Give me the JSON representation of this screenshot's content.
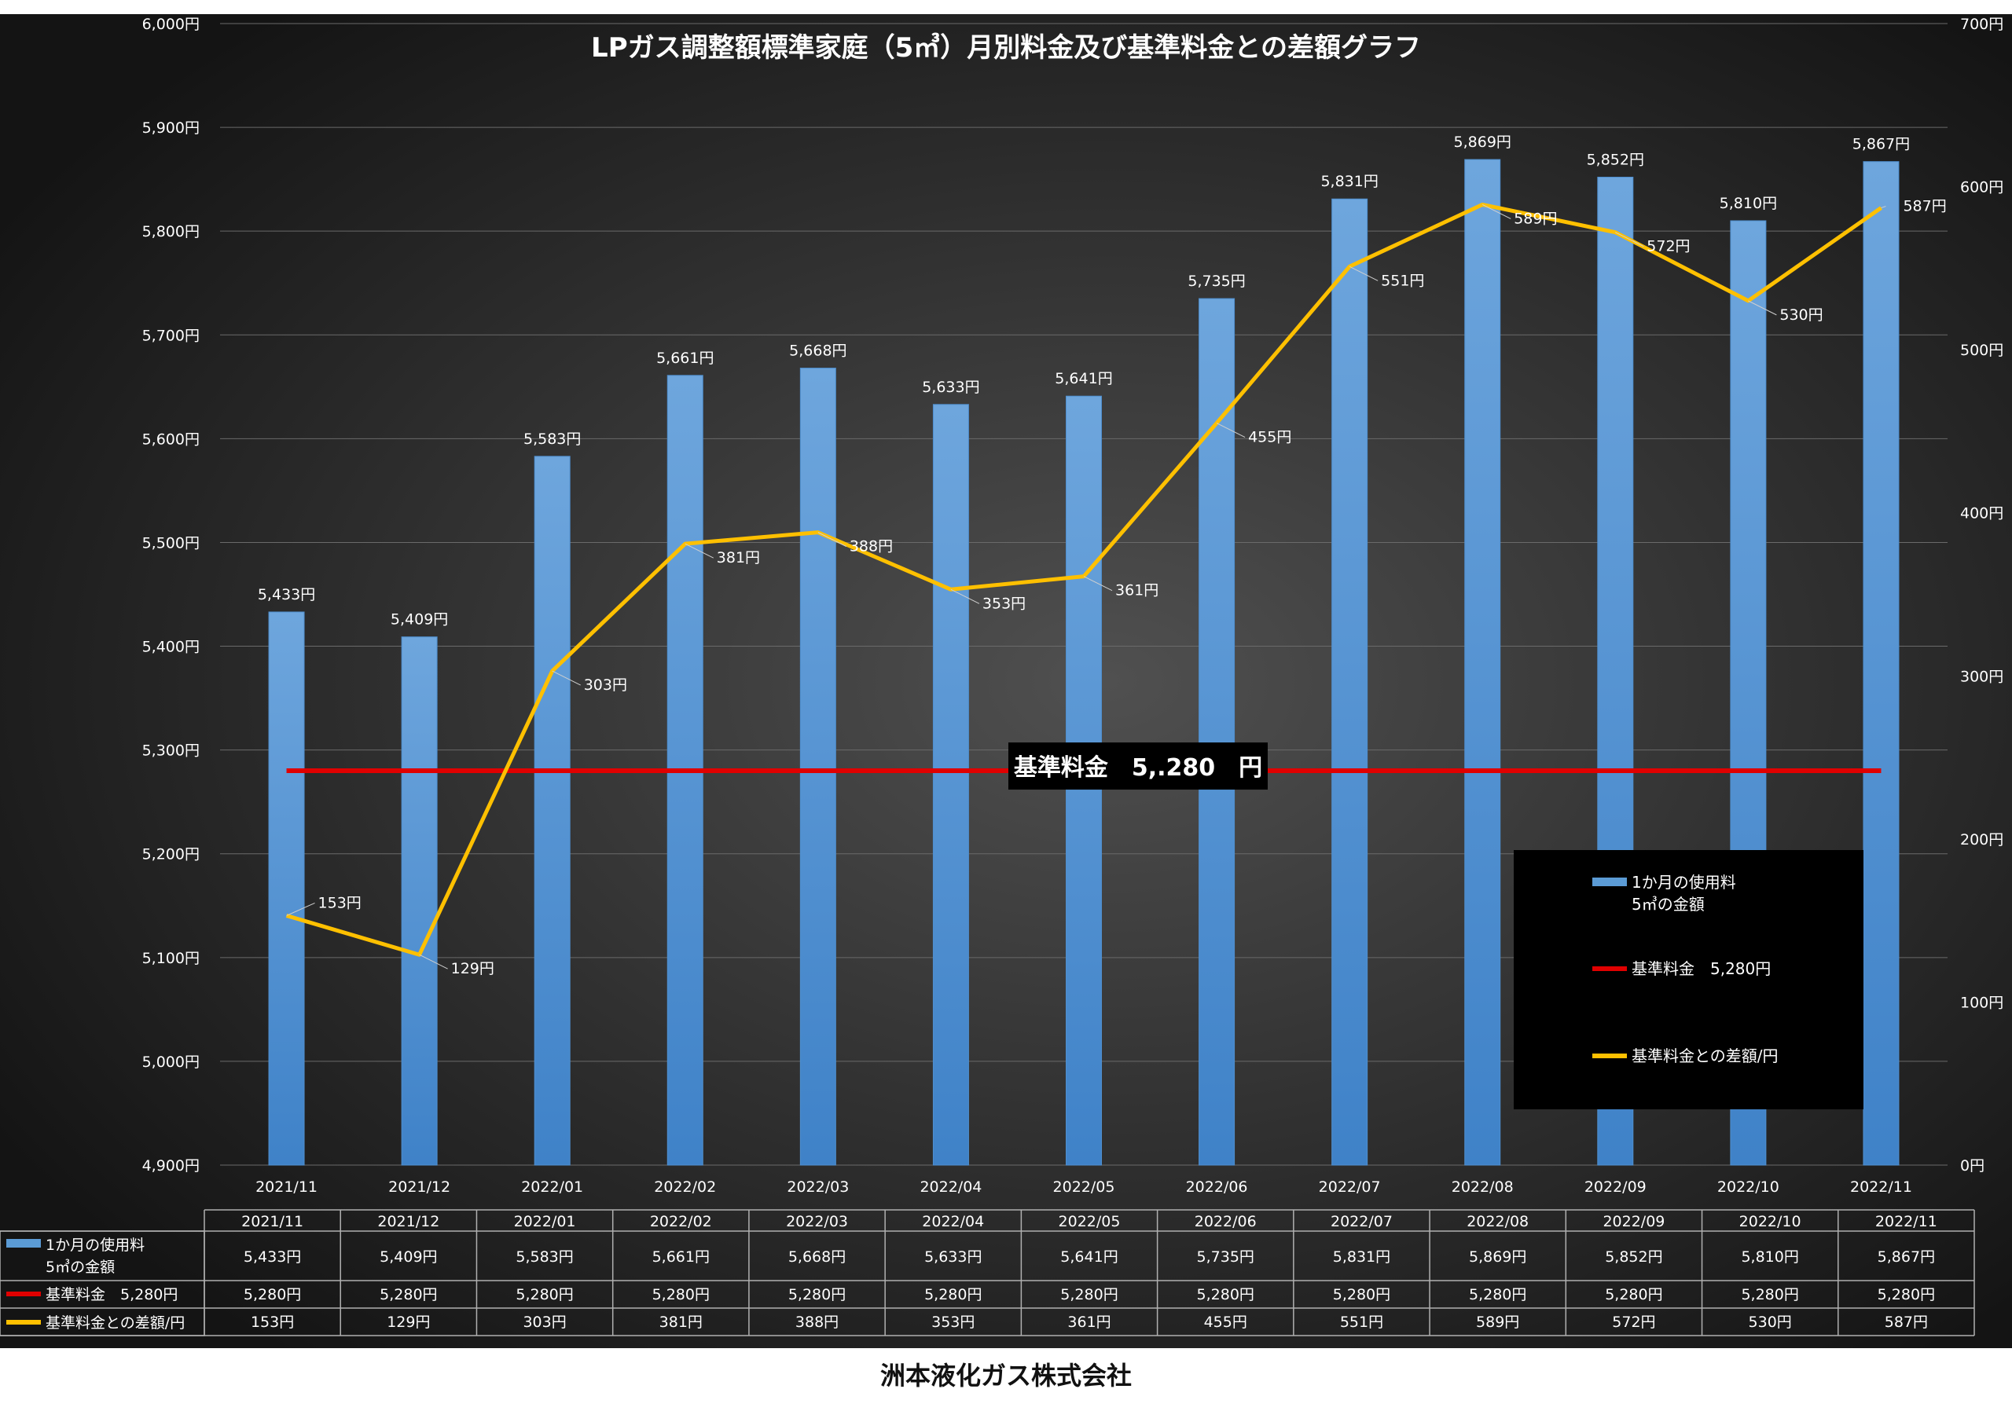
{
  "chart_data": {
    "type": "bar",
    "title": "LPガス調整額標準家庭（5㎥）月別料金及び基準料金との差額グラフ",
    "categories": [
      "2021/11",
      "2021/12",
      "2022/01",
      "2022/02",
      "2022/03",
      "2022/04",
      "2022/05",
      "2022/06",
      "2022/07",
      "2022/08",
      "2022/09",
      "2022/10",
      "2022/11"
    ],
    "y_left": {
      "min": 4900,
      "max": 6000,
      "step": 100,
      "unit": "円"
    },
    "y_right": {
      "min": 0,
      "max": 700,
      "step": 100,
      "unit": "円"
    },
    "y_left_ticks": [
      "4,900円",
      "5,000円",
      "5,100円",
      "5,200円",
      "5,300円",
      "5,400円",
      "5,500円",
      "5,600円",
      "5,700円",
      "5,800円",
      "5,900円",
      "6,000円"
    ],
    "y_right_ticks": [
      "0円",
      "100円",
      "200円",
      "300円",
      "400円",
      "500円",
      "600円",
      "700円"
    ],
    "grid": true,
    "legend_position": "bottom-right",
    "series": [
      {
        "name_lines": [
          "1か月の使用料",
          "5㎥の金額"
        ],
        "type": "bar",
        "axis": "left",
        "color": "#5b9bd5",
        "values": [
          5433,
          5409,
          5583,
          5661,
          5668,
          5633,
          5641,
          5735,
          5831,
          5869,
          5852,
          5810,
          5867
        ],
        "labels": [
          "5,433円",
          "5,409円",
          "5,583円",
          "5,661円",
          "5,668円",
          "5,633円",
          "5,641円",
          "5,735円",
          "5,831円",
          "5,869円",
          "5,852円",
          "5,810円",
          "5,867円"
        ]
      },
      {
        "name": "基準料金　5,280円",
        "type": "line",
        "axis": "left",
        "color": "#e00000",
        "values": [
          5280,
          5280,
          5280,
          5280,
          5280,
          5280,
          5280,
          5280,
          5280,
          5280,
          5280,
          5280,
          5280
        ],
        "labels": [
          "5,280円",
          "5,280円",
          "5,280円",
          "5,280円",
          "5,280円",
          "5,280円",
          "5,280円",
          "5,280円",
          "5,280円",
          "5,280円",
          "5,280円",
          "5,280円",
          "5,280円"
        ]
      },
      {
        "name": "基準料金との差額/円",
        "type": "line",
        "axis": "right",
        "color": "#ffc000",
        "values": [
          153,
          129,
          303,
          381,
          388,
          353,
          361,
          455,
          551,
          589,
          572,
          530,
          587
        ],
        "labels": [
          "153円",
          "129円",
          "303円",
          "381円",
          "388円",
          "353円",
          "361円",
          "455円",
          "551円",
          "589円",
          "572円",
          "530円",
          "587円"
        ]
      }
    ],
    "annotation": "基準料金　5,.280　円",
    "table": {
      "header": [
        "2021/11",
        "2021/12",
        "2022/01",
        "2022/02",
        "2022/03",
        "2022/04",
        "2022/05",
        "2022/06",
        "2022/07",
        "2022/08",
        "2022/09",
        "2022/10",
        "2022/11"
      ]
    }
  },
  "footer": "洲本液化ガス株式会社"
}
